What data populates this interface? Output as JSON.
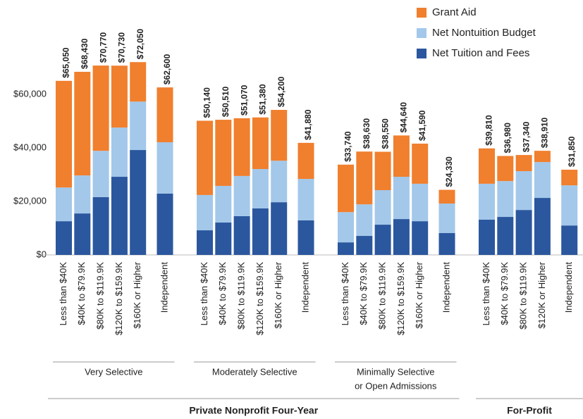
{
  "chart_data": {
    "type": "stacked-bar",
    "ylim": [
      0,
      75000
    ],
    "yticks": [
      {
        "value": 0,
        "label": "$0"
      },
      {
        "value": 20000,
        "label": "$20,000"
      },
      {
        "value": 40000,
        "label": "$40,000"
      },
      {
        "value": 60000,
        "label": "$60,000"
      }
    ],
    "legend": "top-right",
    "sectors": [
      {
        "name": "Private Nonprofit Four-Year",
        "groups": [
          {
            "name": "Very Selective",
            "categories": [
              "Less than $40K",
              "$40K to $79.9K",
              "$80K to $119.9K",
              "$120K to $159.9K",
              "$160K or Higher",
              "Independent"
            ]
          },
          {
            "name": "Moderately Selective",
            "categories": [
              "Less than $40K",
              "$40K to $79.9K",
              "$80K to $119.9K",
              "$120K to $159.9K",
              "$160K or Higher",
              "Independent"
            ]
          },
          {
            "name": [
              "Minimally Selective",
              "or Open Admissions"
            ],
            "categories": [
              "Less than $40K",
              "$40K to $79.9K",
              "$80K to $119.9K",
              "$120K to $159.9K",
              "$160K or Higher",
              "Independent"
            ]
          }
        ]
      },
      {
        "name": "For-Profit",
        "groups": [
          {
            "categories": [
              "Less than $40K",
              "$40K to $79.9K",
              "$80K to $119.9K",
              "$120K or Higher",
              "Independent"
            ]
          }
        ]
      }
    ],
    "series": [
      {
        "name": "Grant Aid",
        "color": "#f07f2e",
        "values": [
          39850,
          38730,
          31870,
          23130,
          14750,
          20500,
          27740,
          24710,
          21570,
          19280,
          19000,
          13480,
          17740,
          19730,
          14350,
          15440,
          14990,
          5130,
          13210,
          9380,
          6040,
          4210,
          5850
        ]
      },
      {
        "name": "Net Nontuition Budget",
        "color": "#a3c8ea",
        "values": [
          12600,
          14200,
          17300,
          18400,
          18100,
          19200,
          13200,
          13700,
          15000,
          14700,
          15500,
          15500,
          11300,
          11800,
          12900,
          15800,
          14000,
          11000,
          13400,
          13400,
          14500,
          13400,
          15000
        ]
      },
      {
        "name": "Net Tuition and Fees",
        "color": "#2b579e",
        "values": [
          12600,
          15500,
          21600,
          29200,
          39200,
          22900,
          9200,
          12100,
          14500,
          17400,
          19700,
          12900,
          4700,
          7100,
          11300,
          13400,
          12600,
          8200,
          13200,
          14200,
          16800,
          21300,
          11000
        ]
      }
    ],
    "totals": [
      65050,
      68430,
      70770,
      70730,
      72050,
      62600,
      50140,
      50510,
      51070,
      51380,
      54200,
      41880,
      33740,
      38630,
      38550,
      44640,
      41590,
      24330,
      39810,
      36980,
      37340,
      38910,
      31850
    ],
    "total_labels": [
      "$65,050",
      "$68,430",
      "$70,770",
      "$70,730",
      "$72,050",
      "$62,600",
      "$50,140",
      "$50,510",
      "$51,070",
      "$51,380",
      "$54,200",
      "$41,880",
      "$33,740",
      "$38,630",
      "$38,550",
      "$44,640",
      "$41,590",
      "$24,330",
      "$39,810",
      "$36,980",
      "$37,340",
      "$38,910",
      "$31,850"
    ]
  }
}
